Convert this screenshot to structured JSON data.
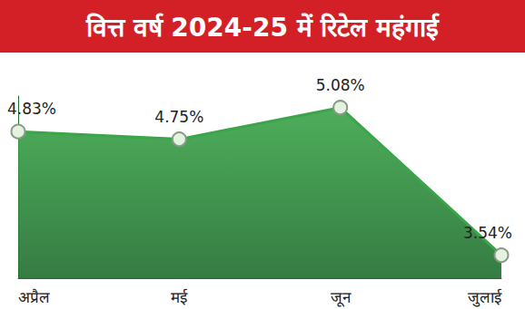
{
  "chart_data": {
    "type": "line",
    "title": "वित्त वर्ष 2024-25 में रिटेल महंगाई",
    "categories": [
      "अप्रैल",
      "मई",
      "जून",
      "जुलाई"
    ],
    "values": [
      4.83,
      4.75,
      5.08,
      3.54
    ],
    "value_labels": [
      "4.83%",
      "4.75%",
      "5.08%",
      "3.54%"
    ],
    "color": "#3aa549",
    "ylim": [
      3.3,
      5.2
    ],
    "data_labels": true,
    "tick_labels": "x",
    "grid": false,
    "marker": "circle"
  }
}
